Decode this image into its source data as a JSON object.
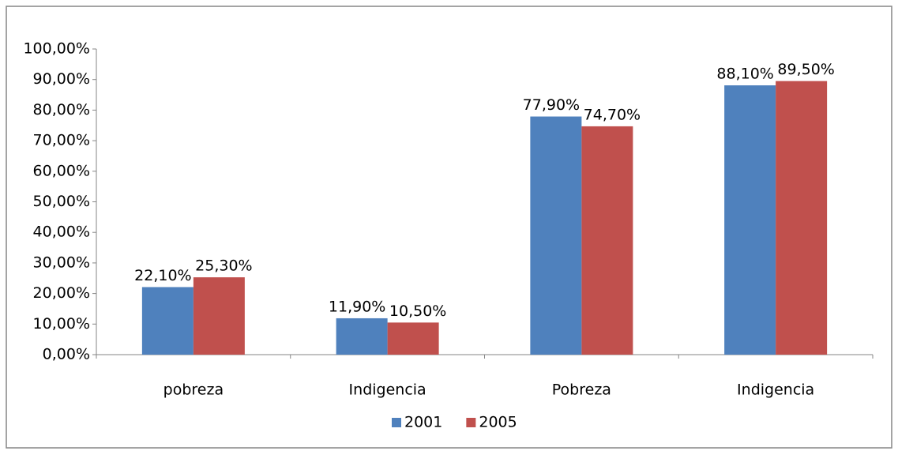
{
  "chart_data": {
    "type": "bar",
    "categories": [
      "pobreza",
      "Indigencia",
      "Pobreza",
      "Indigencia"
    ],
    "series": [
      {
        "name": "2001",
        "color": "#4f81bd",
        "values": [
          22.1,
          11.9,
          77.9,
          88.1
        ],
        "value_labels": [
          "22,10%",
          "11,90%",
          "77,90%",
          "88,10%"
        ]
      },
      {
        "name": "2005",
        "color": "#c0504d",
        "values": [
          25.3,
          10.5,
          74.7,
          89.5
        ],
        "value_labels": [
          "25,30%",
          "10,50%",
          "74,70%",
          "89,50%"
        ]
      }
    ],
    "ylim": [
      0,
      100
    ],
    "yticks": [
      {
        "value": 0,
        "label": "0,00%"
      },
      {
        "value": 10,
        "label": "10,00%"
      },
      {
        "value": 20,
        "label": "20,00%"
      },
      {
        "value": 30,
        "label": "30,00%"
      },
      {
        "value": 40,
        "label": "40,00%"
      },
      {
        "value": 50,
        "label": "50,00%"
      },
      {
        "value": 60,
        "label": "60,00%"
      },
      {
        "value": 70,
        "label": "70,00%"
      },
      {
        "value": 80,
        "label": "80,00%"
      },
      {
        "value": 90,
        "label": "90,00%"
      },
      {
        "value": 100,
        "label": "100,00%"
      }
    ],
    "grid": false,
    "legend": "bottom"
  }
}
